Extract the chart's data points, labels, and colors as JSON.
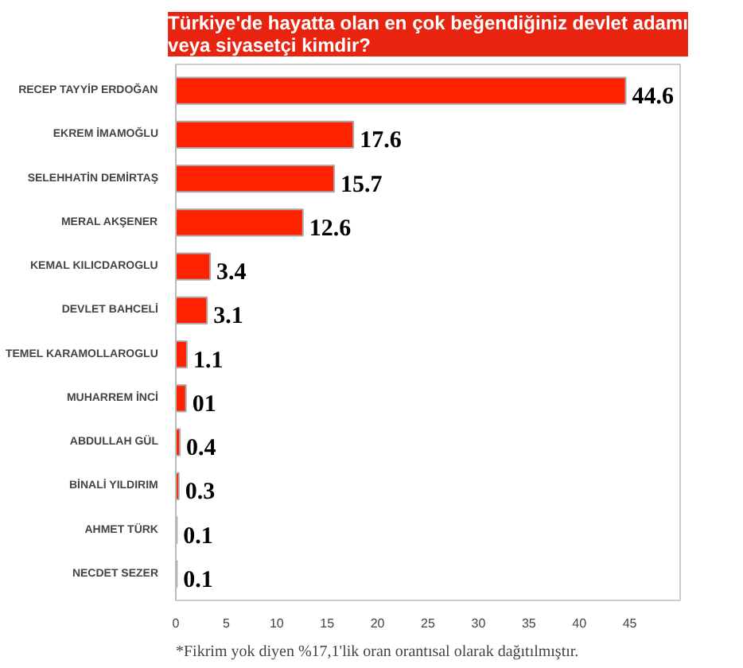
{
  "chart_data": {
    "type": "bar",
    "orientation": "horizontal",
    "title": "Türkiye'de hayatta olan en çok beğendiğiniz devlet adamı\nveya siyasetçi kimdir?",
    "categories": [
      "RECEP TAYYİP ERDOĞAN",
      "EKREM İMAMOĞLU",
      "SELEHHATİN DEMİRTAŞ",
      "MERAL AKŞENER",
      "KEMAL KILICDAROGLU",
      "DEVLET BAHCELİ",
      "TEMEL KARAMOLLAROGLU",
      "MUHARREM İNCİ",
      "ABDULLAH GÜL",
      "BİNALİ YILDIRIM",
      "AHMET TÜRK",
      "NECDET SEZER"
    ],
    "values": [
      44.6,
      17.6,
      15.7,
      12.6,
      3.4,
      3.1,
      1.1,
      1.0,
      0.4,
      0.3,
      0.1,
      0.1
    ],
    "value_labels": [
      "44.6",
      "17.6",
      "15.7",
      "12.6",
      "3.4",
      "3.1",
      "1.1",
      "01",
      "0.4",
      "0.3",
      "0.1",
      "0.1"
    ],
    "color": "#ff2200",
    "xlim": [
      0,
      50
    ],
    "xticks": [
      0,
      5,
      10,
      15,
      20,
      25,
      30,
      35,
      40,
      45
    ],
    "grid": false,
    "annotations": [
      "*Fikrim yok diyen %17,1'lik oran orantısal olarak dağıtılmıştır."
    ]
  }
}
